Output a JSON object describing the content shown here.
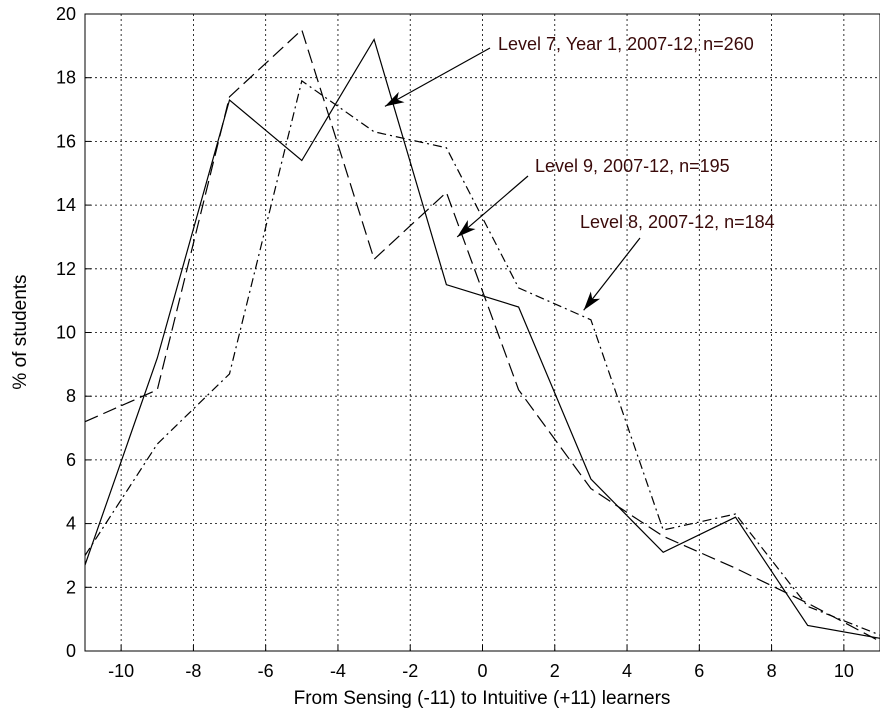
{
  "chart_data": {
    "type": "line",
    "xlabel": "From Sensing (-11) to Intuitive (+11) learners",
    "ylabel": "% of students",
    "xlim": [
      -11,
      11
    ],
    "ylim": [
      0,
      20
    ],
    "xticks": [
      -10,
      -8,
      -6,
      -4,
      -2,
      0,
      2,
      4,
      6,
      8,
      10
    ],
    "yticks": [
      0,
      2,
      4,
      6,
      8,
      10,
      12,
      14,
      16,
      18,
      20
    ],
    "grid": true,
    "series": [
      {
        "name": "Level 7, Year 1, 2007-12, n=260",
        "style": "solid",
        "x": [
          -11,
          -9,
          -7,
          -5,
          -3,
          -1,
          1,
          3,
          5,
          7,
          9,
          11
        ],
        "y": [
          2.7,
          9.2,
          17.3,
          15.4,
          19.2,
          11.5,
          10.8,
          5.4,
          3.1,
          4.2,
          0.8,
          0.4
        ]
      },
      {
        "name": "Level 9, 2007-12, n=195",
        "style": "dashed",
        "x": [
          -11,
          -9,
          -7,
          -5,
          -3,
          -1,
          1,
          3,
          5,
          7,
          9,
          11
        ],
        "y": [
          7.2,
          8.2,
          17.4,
          19.5,
          12.3,
          14.4,
          8.2,
          5.1,
          3.6,
          2.6,
          1.5,
          0.3
        ]
      },
      {
        "name": "Level 8, 2007-12, n=184",
        "style": "dashdot",
        "x": [
          -11,
          -9,
          -7,
          -5,
          -3,
          -1,
          1,
          3,
          5,
          7,
          9,
          11
        ],
        "y": [
          3.0,
          6.5,
          8.7,
          17.9,
          16.3,
          15.8,
          11.4,
          10.4,
          3.8,
          4.3,
          1.4,
          0.5
        ]
      }
    ],
    "annotations": [
      {
        "text": "Level 7, Year 1, 2007-12, n=260",
        "series": 0,
        "x": -2.7,
        "y": 17.1
      },
      {
        "text": "Level 9, 2007-12, n=195",
        "series": 1,
        "x": -0.7,
        "y": 13.0
      },
      {
        "text": "Level 8, 2007-12, n=184",
        "series": 2,
        "x": 2.8,
        "y": 10.7
      }
    ]
  }
}
